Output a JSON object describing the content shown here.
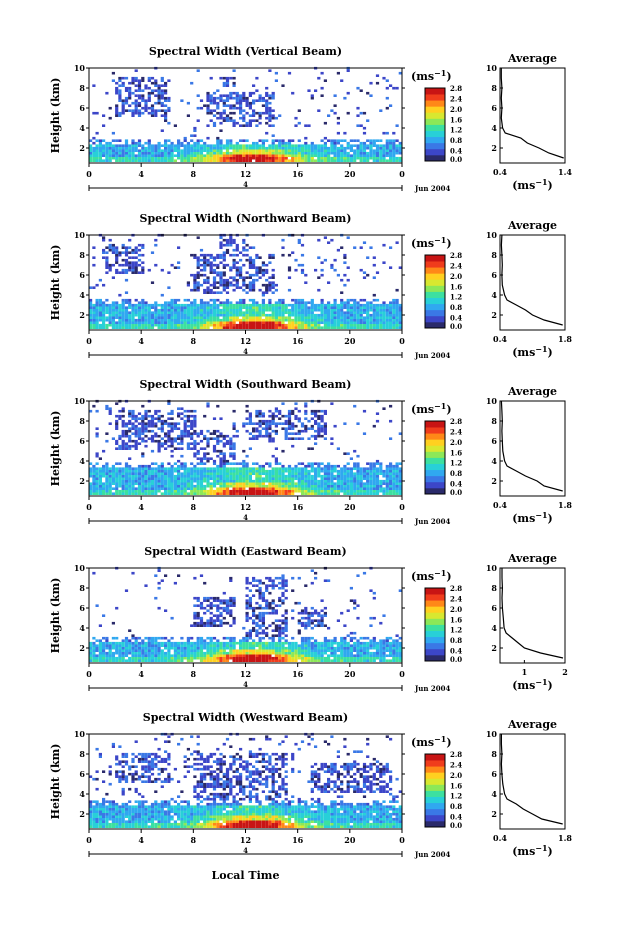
{
  "common": {
    "ylabel": "Height (km)",
    "unit": "(ms",
    "unit_exp": "−1",
    "average_title": "Average",
    "date": "Jun 2004",
    "day_mark": "4",
    "xlabel": "Local Time",
    "x_ticks": [
      "0",
      "4",
      "8",
      "12",
      "16",
      "20",
      "0"
    ],
    "y_ticks": [
      "2",
      "4",
      "6",
      "8",
      "10"
    ],
    "avg_y_ticks": [
      "2",
      "4",
      "6",
      "8",
      "10"
    ],
    "colorbar_ticks": [
      "0.0",
      "0.4",
      "0.8",
      "1.2",
      "1.6",
      "2.0",
      "2.4",
      "2.8"
    ],
    "colormap": [
      "#2a2a6a",
      "#3c46c8",
      "#3a78e6",
      "#30a8f0",
      "#28d0d8",
      "#3ce0a0",
      "#8ce858",
      "#d8e830",
      "#ffd020",
      "#ff8818",
      "#f03c1c",
      "#c81414"
    ]
  },
  "panels": [
    {
      "title": "Spectral Width (Vertical Beam)",
      "avg_x_ticks": [
        "0.4",
        "1.4"
      ]
    },
    {
      "title": "Spectral Width (Northward Beam)",
      "avg_x_ticks": [
        "0.4",
        "1.8"
      ]
    },
    {
      "title": "Spectral Width (Southward Beam)",
      "avg_x_ticks": [
        "0.4",
        "1.8"
      ]
    },
    {
      "title": "Spectral Width (Eastward Beam)",
      "avg_x_ticks": [
        "1",
        "2"
      ]
    },
    {
      "title": "Spectral Width (Westward Beam)",
      "avg_x_ticks": [
        "0.4",
        "1.8"
      ]
    }
  ],
  "chart_data": [
    {
      "type": "heatmap",
      "title": "Spectral Width (Vertical Beam)",
      "xlabel": "",
      "ylabel": "Height (km)",
      "xlim": [
        0,
        24
      ],
      "ylim": [
        0.5,
        10
      ],
      "colorbar_label": "(ms−1)",
      "colorbar_range": [
        0.0,
        2.8
      ],
      "profile": {
        "title": "Average",
        "xlabel": "(ms−1)",
        "xlim": [
          0.4,
          1.4
        ],
        "heights": [
          1.0,
          1.5,
          2.0,
          2.5,
          3.0,
          3.5,
          4.0,
          5.0,
          6.0,
          7.0,
          8.0,
          9.0,
          10.0
        ],
        "values": [
          1.38,
          1.15,
          1.0,
          0.82,
          0.72,
          0.48,
          0.44,
          0.42,
          0.43,
          0.42,
          0.43,
          0.42,
          0.42
        ]
      }
    },
    {
      "type": "heatmap",
      "title": "Spectral Width (Northward Beam)",
      "xlabel": "",
      "ylabel": "Height (km)",
      "xlim": [
        0,
        24
      ],
      "ylim": [
        0.5,
        10
      ],
      "colorbar_label": "(ms−1)",
      "colorbar_range": [
        0.0,
        2.8
      ],
      "profile": {
        "title": "Average",
        "xlabel": "(ms−1)",
        "xlim": [
          0.4,
          1.8
        ],
        "heights": [
          1.0,
          1.5,
          2.0,
          2.5,
          3.0,
          3.5,
          4.0,
          5.0,
          6.0,
          7.0,
          8.0,
          9.0,
          10.0
        ],
        "values": [
          1.75,
          1.35,
          1.1,
          0.95,
          0.75,
          0.55,
          0.5,
          0.45,
          0.44,
          0.45,
          0.44,
          0.43,
          0.44
        ]
      }
    },
    {
      "type": "heatmap",
      "title": "Spectral Width (Southward Beam)",
      "xlabel": "",
      "ylabel": "Height (km)",
      "xlim": [
        0,
        24
      ],
      "ylim": [
        0.5,
        10
      ],
      "colorbar_label": "(ms−1)",
      "colorbar_range": [
        0.0,
        2.8
      ],
      "profile": {
        "title": "Average",
        "xlabel": "(ms−1)",
        "xlim": [
          0.4,
          1.8
        ],
        "heights": [
          1.0,
          1.5,
          2.0,
          2.5,
          3.0,
          3.5,
          4.0,
          5.0,
          6.0,
          7.0,
          8.0,
          9.0,
          10.0
        ],
        "values": [
          1.75,
          1.35,
          1.2,
          0.95,
          0.75,
          0.55,
          0.5,
          0.46,
          0.45,
          0.44,
          0.45,
          0.44,
          0.43
        ]
      }
    },
    {
      "type": "heatmap",
      "title": "Spectral Width (Eastward Beam)",
      "xlabel": "",
      "ylabel": "Height (km)",
      "xlim": [
        0,
        24
      ],
      "ylim": [
        0.5,
        10
      ],
      "colorbar_label": "(ms−1)",
      "colorbar_range": [
        0.0,
        2.8
      ],
      "profile": {
        "title": "Average",
        "xlabel": "(ms−1)",
        "xlim": [
          0.4,
          2.0
        ],
        "heights": [
          1.0,
          1.5,
          2.0,
          2.5,
          3.0,
          3.5,
          4.0,
          5.0,
          6.0,
          7.0,
          8.0,
          9.0,
          10.0
        ],
        "values": [
          1.95,
          1.4,
          1.0,
          0.85,
          0.7,
          0.55,
          0.5,
          0.48,
          0.46,
          0.45,
          0.46,
          0.45,
          0.45
        ]
      }
    },
    {
      "type": "heatmap",
      "title": "Spectral Width (Westward Beam)",
      "xlabel": "Local Time",
      "ylabel": "Height (km)",
      "xlim": [
        0,
        24
      ],
      "ylim": [
        0.5,
        10
      ],
      "colorbar_label": "(ms−1)",
      "colorbar_range": [
        0.0,
        2.8
      ],
      "profile": {
        "title": "Average",
        "xlabel": "(ms−1)",
        "xlim": [
          0.4,
          1.8
        ],
        "heights": [
          1.0,
          1.5,
          2.0,
          2.5,
          3.0,
          3.5,
          4.0,
          5.0,
          6.0,
          7.0,
          8.0,
          9.0,
          10.0
        ],
        "values": [
          1.75,
          1.3,
          1.1,
          0.9,
          0.75,
          0.55,
          0.5,
          0.46,
          0.44,
          0.43,
          0.44,
          0.43,
          0.43
        ]
      }
    }
  ]
}
